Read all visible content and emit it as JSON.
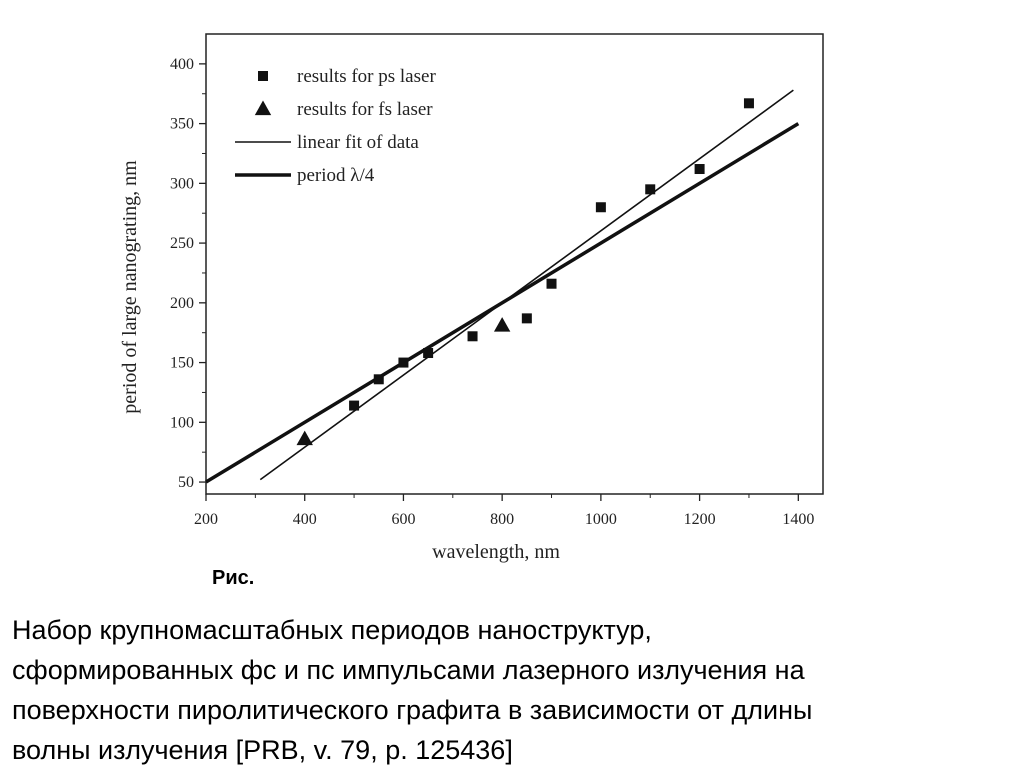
{
  "figure": {
    "label": "Рис.",
    "caption_lines": [
      "Набор крупномасштабных периодов наноструктур,",
      "сформированных  фс и пс импульсами лазерного излучения на",
      "поверхности пиролитического графита в зависимости  от длины",
      "волны излучения [PRB, v. 79, p. 125436]"
    ]
  },
  "chart_data": {
    "type": "scatter",
    "xlabel": "wavelength, nm",
    "ylabel": "period of large nanograting, nm",
    "xlim": [
      200,
      1450
    ],
    "ylim": [
      40,
      425
    ],
    "x_ticks": [
      200,
      400,
      600,
      800,
      1000,
      1200,
      1400
    ],
    "y_ticks": [
      50,
      100,
      150,
      200,
      250,
      300,
      350,
      400
    ],
    "grid": false,
    "legend_position": "top-left",
    "series": [
      {
        "name": "results for ps laser",
        "marker": "square",
        "color": "#111111",
        "points": [
          [
            500,
            114
          ],
          [
            550,
            136
          ],
          [
            600,
            150
          ],
          [
            650,
            158
          ],
          [
            740,
            172
          ],
          [
            850,
            187
          ],
          [
            900,
            216
          ],
          [
            1000,
            280
          ],
          [
            1100,
            295
          ],
          [
            1200,
            312
          ],
          [
            1300,
            367
          ]
        ]
      },
      {
        "name": "results for fs laser",
        "marker": "triangle",
        "color": "#111111",
        "points": [
          [
            400,
            86
          ],
          [
            800,
            181
          ]
        ]
      },
      {
        "name": "linear fit of data",
        "line": "thin",
        "color": "#111111",
        "points": [
          [
            310,
            52
          ],
          [
            1390,
            378
          ]
        ]
      },
      {
        "name": "period λ/4",
        "line": "thick",
        "color": "#111111",
        "points": [
          [
            200,
            50
          ],
          [
            1400,
            350
          ]
        ]
      }
    ]
  }
}
